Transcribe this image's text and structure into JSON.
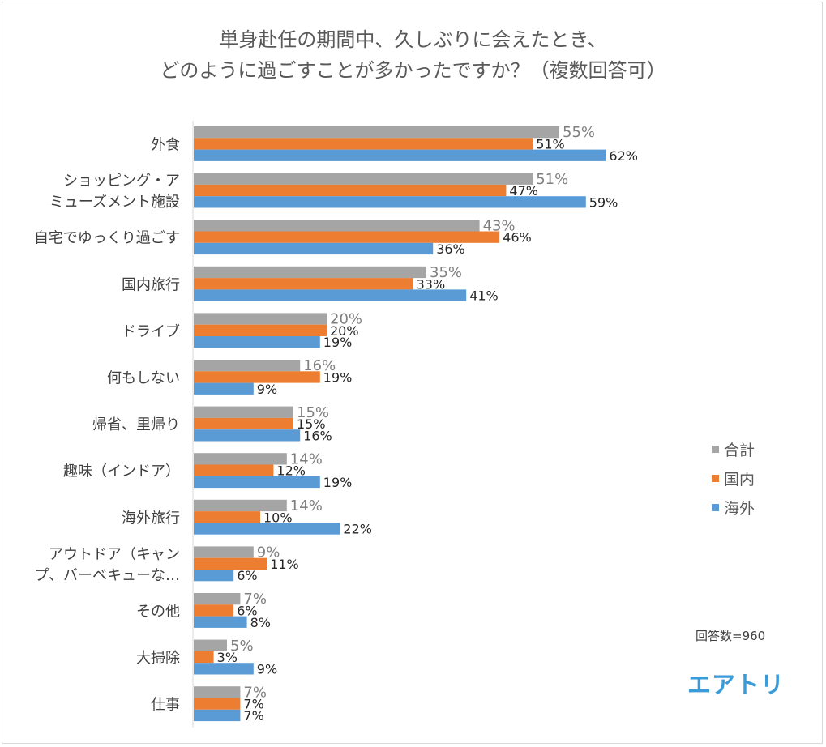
{
  "title": {
    "line1": "単身赴任の期間中、久しぶりに会えたとき、",
    "line2": "どのように過ごすことが多かったですか？（複数回答可）"
  },
  "legend": [
    {
      "label": "合計",
      "color": "#a5a5a5"
    },
    {
      "label": "国内",
      "color": "#ed7d31"
    },
    {
      "label": "海外",
      "color": "#5b9bd5"
    }
  ],
  "note": "回答数=960",
  "brand": "エアトリ",
  "chart_data": {
    "type": "bar",
    "orientation": "horizontal",
    "value_suffix": "%",
    "xlim": [
      0,
      70
    ],
    "grid": false,
    "legend_position": "right",
    "categories": [
      [
        "外食"
      ],
      [
        "ショッピング・ア",
        "ミューズメント施設"
      ],
      [
        "自宅でゆっくり過ごす"
      ],
      [
        "国内旅行"
      ],
      [
        "ドライブ"
      ],
      [
        "何もしない"
      ],
      [
        "帰省、里帰り"
      ],
      [
        "趣味（インドア）"
      ],
      [
        "海外旅行"
      ],
      [
        "アウトドア（キャン",
        "プ、バーベキューな…"
      ],
      [
        "その他"
      ],
      [
        "大掃除"
      ],
      [
        "仕事"
      ]
    ],
    "series": [
      {
        "name": "合計",
        "color": "#a5a5a5",
        "values": [
          55,
          51,
          43,
          35,
          20,
          16,
          15,
          14,
          14,
          9,
          7,
          5,
          7
        ]
      },
      {
        "name": "国内",
        "color": "#ed7d31",
        "values": [
          51,
          47,
          46,
          33,
          20,
          19,
          15,
          12,
          10,
          11,
          6,
          3,
          7
        ]
      },
      {
        "name": "海外",
        "color": "#5b9bd5",
        "values": [
          62,
          59,
          36,
          41,
          19,
          9,
          16,
          19,
          22,
          6,
          8,
          9,
          7
        ]
      }
    ]
  }
}
